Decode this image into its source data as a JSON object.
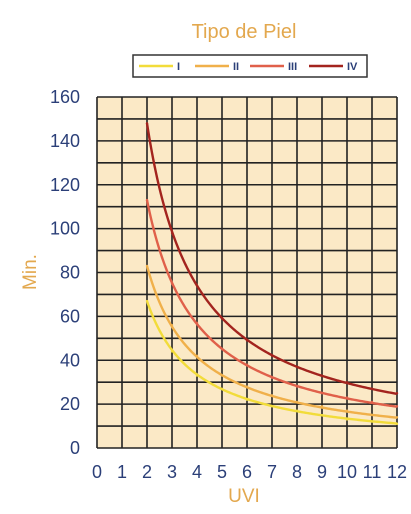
{
  "chart_data": {
    "type": "line",
    "title": "Tipo de Piel",
    "xlabel": "UVI",
    "ylabel": "Min.",
    "xlim": [
      0,
      12
    ],
    "ylim": [
      0,
      160
    ],
    "x_ticks": [
      "0",
      "1",
      "2",
      "3",
      "4",
      "5",
      "6",
      "7",
      "8",
      "9",
      "10",
      "11",
      "12"
    ],
    "y_ticks": [
      "0",
      "20",
      "40",
      "60",
      "80",
      "100",
      "120",
      "140",
      "160"
    ],
    "grid": true,
    "legend_position": "top",
    "background_color": "#fbe9c6",
    "grid_color": "#222222",
    "series": [
      {
        "name": "I",
        "color": "#f2dc3a",
        "x": [
          2,
          3,
          4,
          5,
          6,
          7,
          8,
          9,
          10,
          11,
          12
        ],
        "y": [
          67,
          44,
          33,
          27,
          22,
          19,
          17,
          15,
          13,
          12,
          11
        ]
      },
      {
        "name": "II",
        "color": "#f0b04a",
        "x": [
          2,
          3,
          4,
          5,
          6,
          7,
          8,
          9,
          10,
          11,
          12
        ],
        "y": [
          83,
          56,
          42,
          33,
          28,
          24,
          21,
          19,
          17,
          15,
          14
        ]
      },
      {
        "name": "III",
        "color": "#e0604a",
        "x": [
          2,
          3,
          4,
          5,
          6,
          7,
          8,
          9,
          10,
          11,
          12
        ],
        "y": [
          113,
          75,
          57,
          45,
          38,
          32,
          28,
          25,
          23,
          21,
          19
        ]
      },
      {
        "name": "IV",
        "color": "#a3241e",
        "x": [
          2,
          3,
          4,
          5,
          6,
          7,
          8,
          9,
          10,
          11,
          12
        ],
        "y": [
          148,
          98,
          74,
          59,
          49,
          42,
          37,
          33,
          30,
          27,
          25
        ]
      }
    ]
  }
}
